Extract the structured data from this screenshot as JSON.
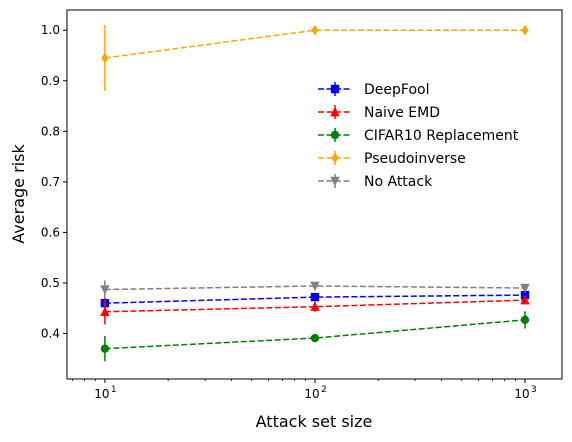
{
  "chart_data": {
    "type": "line",
    "xscale": "log",
    "x": [
      10,
      100,
      1000
    ],
    "x_tick_labels": [
      "10",
      "10",
      "10"
    ],
    "x_tick_exponents": [
      "1",
      "2",
      "3"
    ],
    "xlabel": "Attack set size",
    "ylabel": "Average risk",
    "ylim": [
      0.31,
      1.04
    ],
    "yticks": [
      0.4,
      0.5,
      0.6,
      0.7,
      0.8,
      0.9,
      1.0
    ],
    "ytick_labels": [
      "0.4",
      "0.5",
      "0.6",
      "0.7",
      "0.8",
      "0.9",
      "1.0"
    ],
    "grid": false,
    "legend_position": "upper right",
    "series": [
      {
        "name": "DeepFool",
        "color": "#0000ff",
        "marker": "square",
        "values": [
          0.46,
          0.472,
          0.476
        ],
        "errors": [
          0.01,
          0.006,
          0.008
        ]
      },
      {
        "name": "Naive EMD",
        "color": "#ff0000",
        "marker": "triangle-up",
        "values": [
          0.443,
          0.453,
          0.466
        ],
        "errors": [
          0.025,
          0.01,
          0.008
        ]
      },
      {
        "name": "CIFAR10 Replacement",
        "color": "#008000",
        "marker": "circle",
        "values": [
          0.37,
          0.391,
          0.427
        ],
        "errors": [
          0.025,
          0.005,
          0.017
        ]
      },
      {
        "name": "Pseudoinverse",
        "color": "#ffa500",
        "marker": "diamond",
        "values": [
          0.945,
          1.0,
          1.0
        ],
        "errors": [
          0.065,
          0.004,
          0.004
        ]
      },
      {
        "name": "No Attack",
        "color": "#808080",
        "marker": "triangle-down",
        "values": [
          0.487,
          0.494,
          0.49
        ],
        "errors": [
          0.018,
          0.004,
          0.004
        ]
      }
    ]
  }
}
